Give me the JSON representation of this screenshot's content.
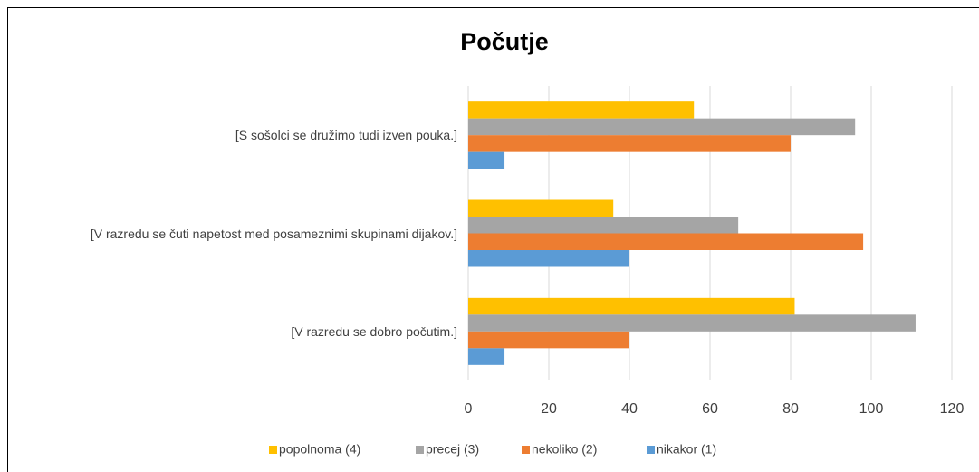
{
  "chart_data": {
    "type": "hbar",
    "title": "Počutje",
    "categories": [
      "[S sošolci se družimo tudi izven pouka.]",
      "[V razredu se čuti napetost med posameznimi skupinami dijakov.]",
      "[V razredu se dobro počutim.]"
    ],
    "series": [
      {
        "name": "popolnoma (4)",
        "color": "#ffc000",
        "values": [
          56,
          36,
          81
        ]
      },
      {
        "name": "precej (3)",
        "color": "#a5a5a5",
        "values": [
          96,
          67,
          111
        ]
      },
      {
        "name": "nekoliko (2)",
        "color": "#ed7d31",
        "values": [
          80,
          98,
          40
        ]
      },
      {
        "name": "nikakor (1)",
        "color": "#5b9bd5",
        "values": [
          9,
          40,
          9
        ]
      }
    ],
    "xlim": [
      0,
      120
    ],
    "xticks": [
      0,
      20,
      40,
      60,
      80,
      100,
      120
    ],
    "grid": true,
    "legend": "bottom"
  }
}
